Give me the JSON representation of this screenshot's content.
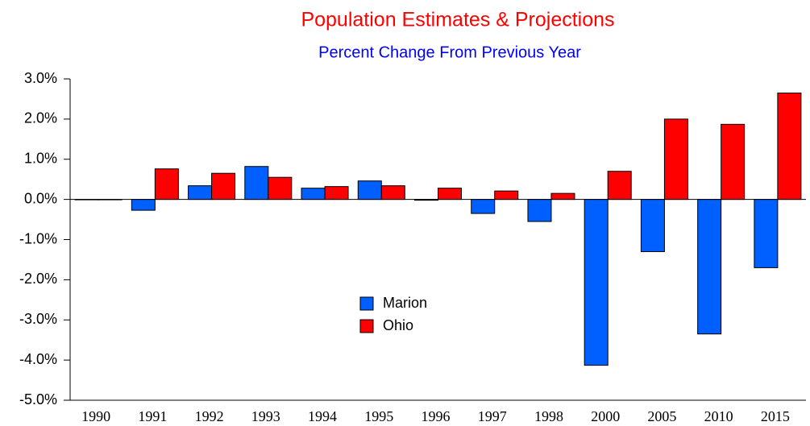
{
  "chart_data": {
    "type": "bar",
    "title": "Population Estimates & Projections",
    "subtitle": "Percent Change From Previous Year",
    "categories": [
      "1990",
      "1991",
      "1992",
      "1993",
      "1994",
      "1995",
      "1996",
      "1997",
      "1998",
      "2000",
      "2005",
      "2010",
      "2015"
    ],
    "series": [
      {
        "name": "Marion",
        "color": "#0060ff",
        "values": [
          0,
          -0.27,
          0.34,
          0.82,
          0.28,
          0.46,
          -0.02,
          -0.35,
          -0.55,
          -4.13,
          -1.3,
          -3.35,
          -1.7
        ]
      },
      {
        "name": "Ohio",
        "color": "#ff0000",
        "values": [
          0,
          0.76,
          0.65,
          0.55,
          0.32,
          0.34,
          0.28,
          0.21,
          0.15,
          0.7,
          2.0,
          1.87,
          2.65
        ]
      }
    ],
    "ylim": [
      -5,
      3
    ],
    "yticks": [
      {
        "value": -5,
        "label": "-5.0%"
      },
      {
        "value": -4,
        "label": "-4.0%"
      },
      {
        "value": -3,
        "label": "-3.0%"
      },
      {
        "value": -2,
        "label": "-2.0%"
      },
      {
        "value": -1,
        "label": "-1.0%"
      },
      {
        "value": 0,
        "label": "0.0%"
      },
      {
        "value": 1,
        "label": "1.0%"
      },
      {
        "value": 2,
        "label": "2.0%"
      },
      {
        "value": 3,
        "label": "3.0%"
      }
    ],
    "grid": false
  }
}
